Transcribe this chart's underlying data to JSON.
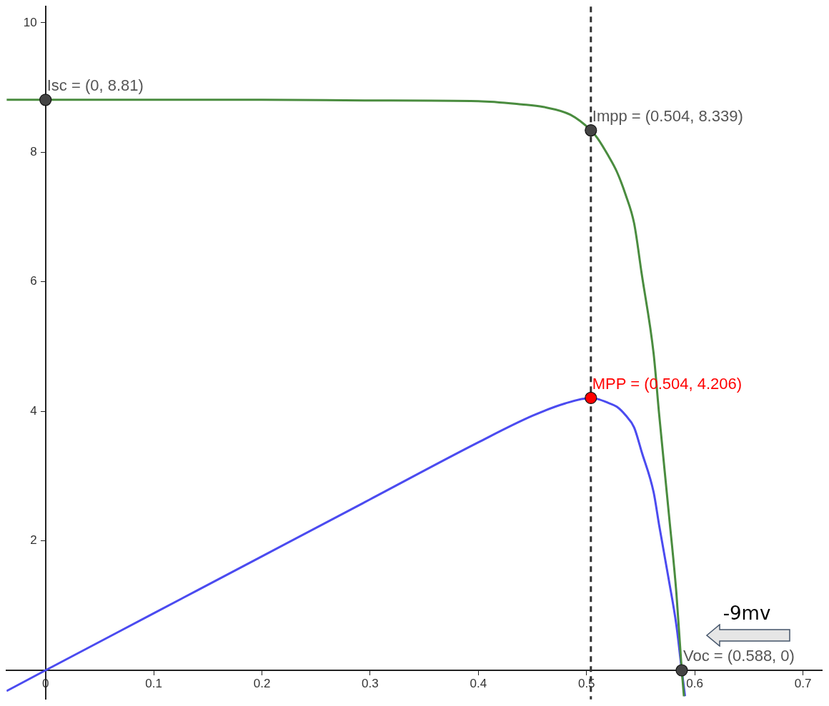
{
  "chart_data": {
    "type": "line",
    "xlim": [
      -0.036,
      0.718
    ],
    "ylim": [
      -0.45,
      10.25
    ],
    "xticks": [
      0,
      0.1,
      0.2,
      0.3,
      0.4,
      0.5,
      0.6,
      0.7
    ],
    "yticks": [
      2,
      4,
      6,
      8,
      10
    ],
    "marker": "none",
    "series": [
      {
        "color": "#4a8c3f",
        "x": [
          -0.036,
          0,
          0.1,
          0.2,
          0.3,
          0.4,
          0.44,
          0.46,
          0.485,
          0.504,
          0.51,
          0.52,
          0.528,
          0.536,
          0.544,
          0.551,
          0.562,
          0.567,
          0.576,
          0.583,
          0.588,
          0.59
        ],
        "values": [
          8.81,
          8.81,
          8.81,
          8.81,
          8.8,
          8.79,
          8.74,
          8.7,
          8.58,
          8.339,
          8.22,
          7.95,
          7.7,
          7.35,
          6.9,
          6.12,
          4.89,
          3.97,
          2.43,
          1.2,
          0,
          -0.4
        ]
      },
      {
        "color": "#4b4bf0",
        "x": [
          -0.036,
          0,
          0.1,
          0.2,
          0.3,
          0.4,
          0.45,
          0.48,
          0.504,
          0.51,
          0.52,
          0.528,
          0.536,
          0.544,
          0.551,
          0.562,
          0.567,
          0.576,
          0.583,
          0.588,
          0.591
        ],
        "values": [
          -0.32,
          0,
          0.88,
          1.76,
          2.64,
          3.52,
          3.93,
          4.12,
          4.206,
          4.19,
          4.13,
          4.07,
          3.94,
          3.75,
          3.37,
          2.75,
          2.25,
          1.4,
          0.7,
          0,
          -0.4
        ]
      },
      {
        "type": "scatter",
        "marker": "circle",
        "x": [
          0,
          0.504,
          0.504,
          0.588
        ],
        "values": [
          8.81,
          8.339,
          4.206,
          0
        ],
        "colors": [
          "#444444",
          "#444444",
          "#ff0000",
          "#444444"
        ]
      }
    ],
    "ref_lines": [
      {
        "axis": "x",
        "value": 0.504,
        "color": "#333333",
        "line_style": "dashed"
      }
    ],
    "annotations": [
      {
        "text": "Isc = (0, 8.81)",
        "x": 0,
        "y": 8.81
      },
      {
        "text": "Impp = (0.504, 8.339)",
        "x": 0.504,
        "y": 8.339
      },
      {
        "text": "MPP = (0.504, 4.206)",
        "x": 0.504,
        "y": 4.206
      },
      {
        "text": "Voc = (0.588, 0)",
        "x": 0.588,
        "y": 0
      },
      "-9mv"
    ]
  }
}
